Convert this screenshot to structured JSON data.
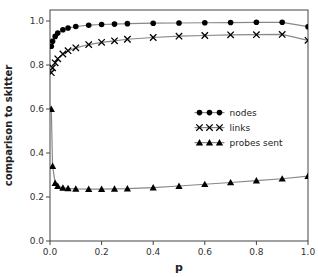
{
  "chart_data": {
    "type": "line",
    "xlabel": "p",
    "ylabel": "comparison to skitter",
    "x": [
      0.005,
      0.01,
      0.02,
      0.03,
      0.05,
      0.07,
      0.1,
      0.15,
      0.2,
      0.25,
      0.3,
      0.4,
      0.5,
      0.6,
      0.7,
      0.8,
      0.9,
      1.0
    ],
    "series": [
      {
        "name": "nodes",
        "color": "#888888",
        "marker": "circle",
        "values": [
          0.885,
          0.908,
          0.93,
          0.945,
          0.96,
          0.968,
          0.975,
          0.981,
          0.984,
          0.986,
          0.988,
          0.99,
          0.991,
          0.992,
          0.993,
          0.994,
          0.994,
          0.974
        ]
      },
      {
        "name": "links",
        "color": "#888888",
        "marker": "x",
        "values": [
          0.765,
          0.787,
          0.81,
          0.828,
          0.85,
          0.865,
          0.878,
          0.893,
          0.903,
          0.91,
          0.917,
          0.925,
          0.931,
          0.934,
          0.937,
          0.938,
          0.939,
          0.912
        ]
      },
      {
        "name": "probes sent",
        "color": "#888888",
        "marker": "triangle",
        "values": [
          0.6,
          0.34,
          0.263,
          0.25,
          0.242,
          0.239,
          0.237,
          0.236,
          0.236,
          0.237,
          0.238,
          0.243,
          0.25,
          0.258,
          0.266,
          0.274,
          0.283,
          0.295
        ]
      }
    ],
    "xlim": [
      0.0,
      1.0
    ],
    "ylim": [
      0.0,
      1.05
    ],
    "xticks": [
      {
        "value": 0.0,
        "label": "0.0"
      },
      0.2,
      0.4,
      0.6,
      0.8,
      {
        "value": 1.0,
        "label": "1.0"
      }
    ],
    "yticks": [
      {
        "value": 0.0,
        "label": "0.0"
      },
      0.2,
      0.4,
      0.6,
      0.8,
      {
        "value": 1.0,
        "label": "1.0"
      }
    ],
    "grid": false,
    "legend": "right"
  }
}
